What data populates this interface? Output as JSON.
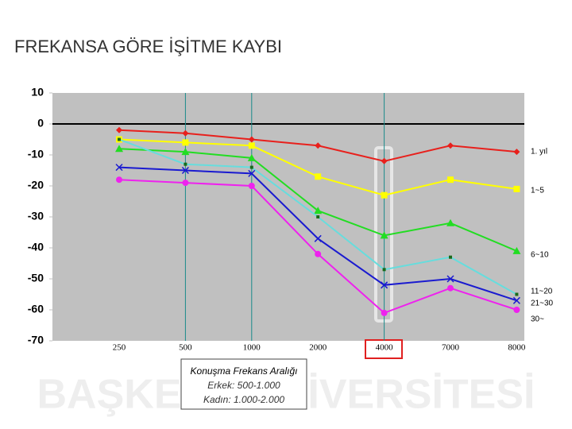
{
  "chart_data": {
    "type": "line",
    "title": "FREKANSA GÖRE İŞİTME KAYBI",
    "categories": [
      "250",
      "500",
      "1000",
      "2000",
      "4000",
      "7000",
      "8000"
    ],
    "series": [
      {
        "name": "1. yıl",
        "color": "#e8201c",
        "marker": "diamond",
        "values": [
          -2,
          -3,
          -5,
          -7,
          -12,
          -7,
          -9
        ]
      },
      {
        "name": "1~5",
        "color": "#ffff00",
        "marker": "square",
        "values": [
          -5,
          -6,
          -7,
          -17,
          -23,
          -18,
          -21
        ]
      },
      {
        "name": "6~10",
        "color": "#22dd22",
        "marker": "triangle",
        "values": [
          -8,
          -9,
          -11,
          -28,
          -36,
          -32,
          -41
        ]
      },
      {
        "name": "11~20",
        "color": "#66dddd",
        "marker": "dot",
        "values": [
          -5,
          -13,
          -14,
          -30,
          -47,
          -43,
          -55
        ]
      },
      {
        "name": "21~30",
        "color": "#1a1ad0",
        "marker": "cross",
        "values": [
          -14,
          -15,
          -16,
          -37,
          -52,
          -50,
          -57
        ]
      },
      {
        "name": "30~",
        "color": "#ee22ee",
        "marker": "circle",
        "values": [
          -18,
          -19,
          -20,
          -42,
          -61,
          -53,
          -60
        ]
      }
    ],
    "ylim": [
      -70,
      10
    ],
    "yticks": [
      10,
      0,
      -10,
      -20,
      -30,
      -40,
      -50,
      -60,
      -70
    ],
    "callout": [
      "Konuşma Frekans Aralığı",
      "Erkek: 500-1.000",
      "Kadın: 1.000-2.000"
    ],
    "watermark": "BAŞKENT ÜNİVERSİTESİ"
  }
}
